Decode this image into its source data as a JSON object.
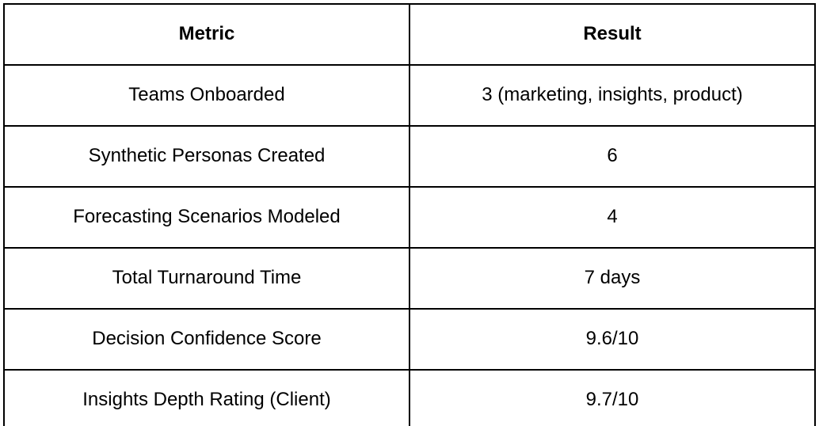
{
  "table": {
    "headers": [
      "Metric",
      "Result"
    ],
    "rows": [
      [
        "Teams Onboarded",
        "3 (marketing, insights, product)"
      ],
      [
        "Synthetic Personas Created",
        "6"
      ],
      [
        "Forecasting Scenarios Modeled",
        "4"
      ],
      [
        "Total Turnaround Time",
        "7 days"
      ],
      [
        "Decision Confidence Score",
        "9.6/10"
      ],
      [
        "Insights Depth Rating (Client)",
        "9.7/10"
      ]
    ]
  },
  "colors": {
    "border": "#000000",
    "text": "#000000",
    "background": "#ffffff"
  }
}
